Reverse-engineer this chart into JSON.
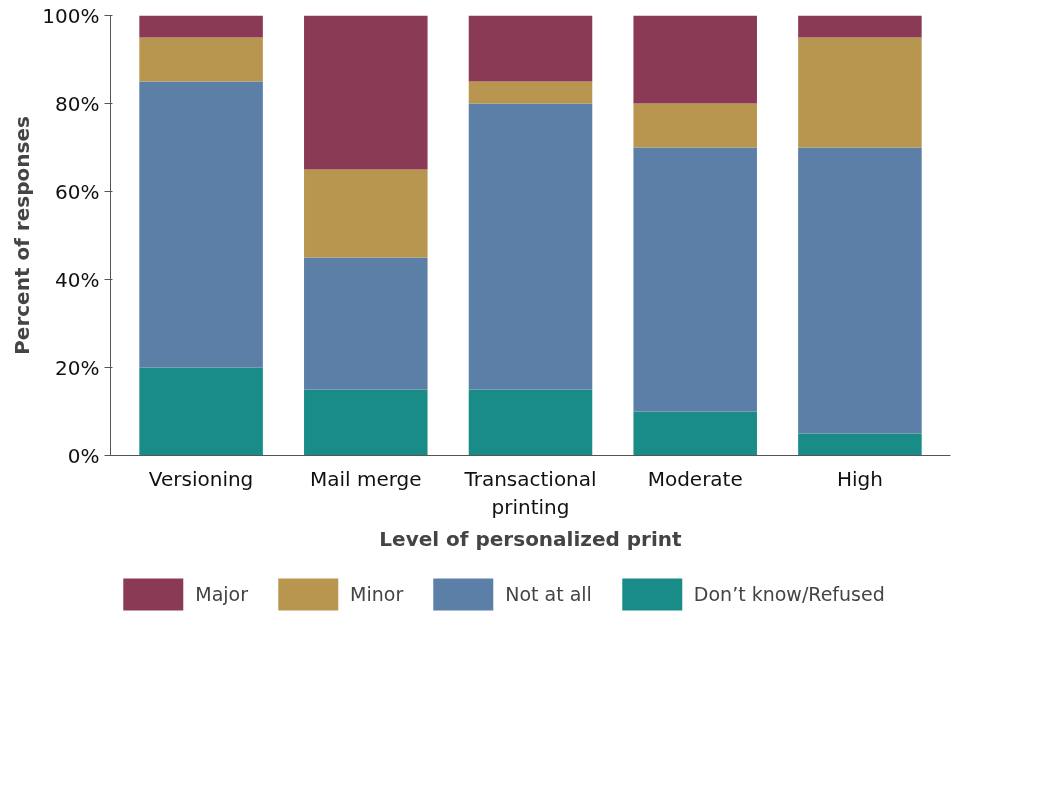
{
  "chart_data": {
    "type": "bar",
    "stacked": true,
    "xlabel": "Level of personalized print",
    "ylabel": "Percent of responses",
    "categories": [
      "Versioning",
      "Mail merge",
      "Transactional printing",
      "Moderate",
      "High"
    ],
    "ylim": [
      0,
      100
    ],
    "yticks": [
      {
        "value": 0,
        "label": "0%"
      },
      {
        "value": 20,
        "label": "20%"
      },
      {
        "value": 40,
        "label": "40%"
      },
      {
        "value": 60,
        "label": "60%"
      },
      {
        "value": 80,
        "label": "80%"
      },
      {
        "value": 100,
        "label": "100%"
      }
    ],
    "grid": false,
    "legend": "bottom",
    "series": [
      {
        "name": "Don’t know/Refused",
        "color": "#1a8c87",
        "values": [
          20,
          15,
          15,
          10,
          5
        ]
      },
      {
        "name": "Not at all",
        "color": "#5b7fa6",
        "values": [
          65,
          30,
          65,
          60,
          65
        ]
      },
      {
        "name": "Minor",
        "color": "#b8964f",
        "values": [
          10,
          20,
          5,
          10,
          25
        ]
      },
      {
        "name": "Major",
        "color": "#8b3a55",
        "values": [
          5,
          35,
          15,
          20,
          5
        ]
      }
    ]
  }
}
